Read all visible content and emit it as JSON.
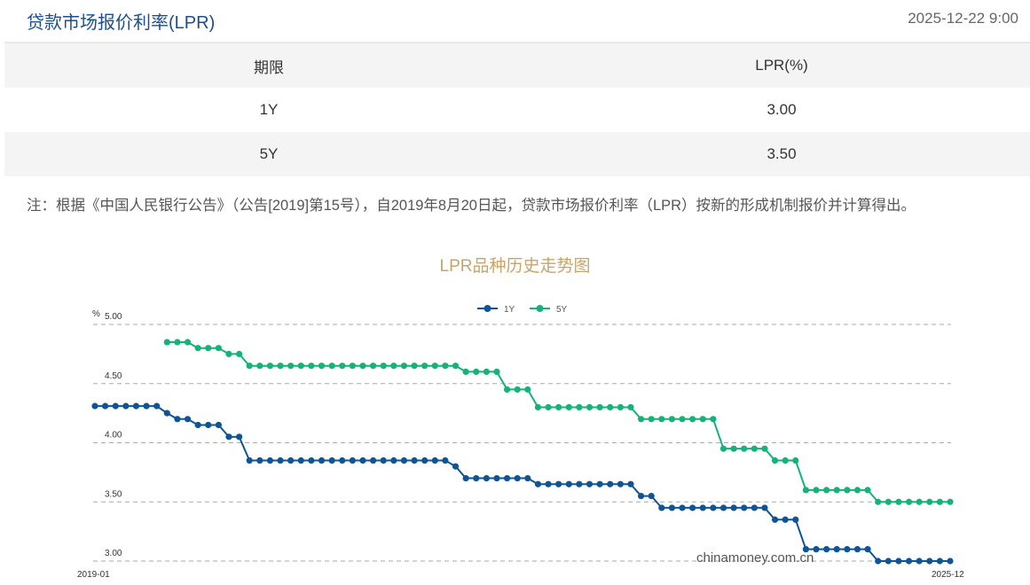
{
  "header": {
    "title": "贷款市场报价利率(LPR)",
    "timestamp": "2025-12-22 9:00"
  },
  "table": {
    "headers": [
      "期限",
      "LPR(%)"
    ],
    "rows": [
      [
        "1Y",
        "3.00"
      ],
      [
        "5Y",
        "3.50"
      ]
    ]
  },
  "note": "注：根据《中国人民银行公告》（公告[2019]第15号），自2019年8月20日起，贷款市场报价利率（LPR）按新的形成机制报价并计算得出。",
  "watermark": "chinamoney.com.cn",
  "chart_data": {
    "type": "line",
    "title": "LPR品种历史走势图",
    "ylabel": "%",
    "ylim": [
      3.0,
      5.0
    ],
    "yticks": [
      "5.00",
      "4.50",
      "4.00",
      "3.50",
      "3.00"
    ],
    "xticks": [
      "2019-01",
      "2025-12"
    ],
    "grid": true,
    "legend": "top-center",
    "x": [
      "2019-01",
      "2019-02",
      "2019-03",
      "2019-04",
      "2019-05",
      "2019-06",
      "2019-07",
      "2019-08",
      "2019-09",
      "2019-10",
      "2019-11",
      "2019-12",
      "2020-01",
      "2020-02",
      "2020-03",
      "2020-04",
      "2020-05",
      "2020-06",
      "2020-07",
      "2020-08",
      "2020-09",
      "2020-10",
      "2020-11",
      "2020-12",
      "2021-01",
      "2021-02",
      "2021-03",
      "2021-04",
      "2021-05",
      "2021-06",
      "2021-07",
      "2021-08",
      "2021-09",
      "2021-10",
      "2021-11",
      "2021-12",
      "2022-01",
      "2022-02",
      "2022-03",
      "2022-04",
      "2022-05",
      "2022-06",
      "2022-07",
      "2022-08",
      "2022-09",
      "2022-10",
      "2022-11",
      "2022-12",
      "2023-01",
      "2023-02",
      "2023-03",
      "2023-04",
      "2023-05",
      "2023-06",
      "2023-07",
      "2023-08",
      "2023-09",
      "2023-10",
      "2023-11",
      "2023-12",
      "2024-01",
      "2024-02",
      "2024-03",
      "2024-04",
      "2024-05",
      "2024-06",
      "2024-07",
      "2024-08",
      "2024-09",
      "2024-10",
      "2024-11",
      "2024-12",
      "2025-01",
      "2025-02",
      "2025-03",
      "2025-04",
      "2025-05",
      "2025-06",
      "2025-07",
      "2025-08",
      "2025-09",
      "2025-10",
      "2025-11",
      "2025-12"
    ],
    "series": [
      {
        "name": "1Y",
        "color": "#0f5596",
        "values": [
          4.31,
          4.31,
          4.31,
          4.31,
          4.31,
          4.31,
          4.31,
          4.25,
          4.2,
          4.2,
          4.15,
          4.15,
          4.15,
          4.05,
          4.05,
          3.85,
          3.85,
          3.85,
          3.85,
          3.85,
          3.85,
          3.85,
          3.85,
          3.85,
          3.85,
          3.85,
          3.85,
          3.85,
          3.85,
          3.85,
          3.85,
          3.85,
          3.85,
          3.85,
          3.85,
          3.8,
          3.7,
          3.7,
          3.7,
          3.7,
          3.7,
          3.7,
          3.7,
          3.65,
          3.65,
          3.65,
          3.65,
          3.65,
          3.65,
          3.65,
          3.65,
          3.65,
          3.65,
          3.55,
          3.55,
          3.45,
          3.45,
          3.45,
          3.45,
          3.45,
          3.45,
          3.45,
          3.45,
          3.45,
          3.45,
          3.45,
          3.35,
          3.35,
          3.35,
          3.1,
          3.1,
          3.1,
          3.1,
          3.1,
          3.1,
          3.1,
          3.0,
          3.0,
          3.0,
          3.0,
          3.0,
          3.0,
          3.0,
          3.0
        ]
      },
      {
        "name": "5Y",
        "color": "#16b27a",
        "values": [
          null,
          null,
          null,
          null,
          null,
          null,
          null,
          4.85,
          4.85,
          4.85,
          4.8,
          4.8,
          4.8,
          4.75,
          4.75,
          4.65,
          4.65,
          4.65,
          4.65,
          4.65,
          4.65,
          4.65,
          4.65,
          4.65,
          4.65,
          4.65,
          4.65,
          4.65,
          4.65,
          4.65,
          4.65,
          4.65,
          4.65,
          4.65,
          4.65,
          4.65,
          4.6,
          4.6,
          4.6,
          4.6,
          4.45,
          4.45,
          4.45,
          4.3,
          4.3,
          4.3,
          4.3,
          4.3,
          4.3,
          4.3,
          4.3,
          4.3,
          4.3,
          4.2,
          4.2,
          4.2,
          4.2,
          4.2,
          4.2,
          4.2,
          4.2,
          3.95,
          3.95,
          3.95,
          3.95,
          3.95,
          3.85,
          3.85,
          3.85,
          3.6,
          3.6,
          3.6,
          3.6,
          3.6,
          3.6,
          3.6,
          3.5,
          3.5,
          3.5,
          3.5,
          3.5,
          3.5,
          3.5,
          3.5
        ]
      }
    ]
  }
}
